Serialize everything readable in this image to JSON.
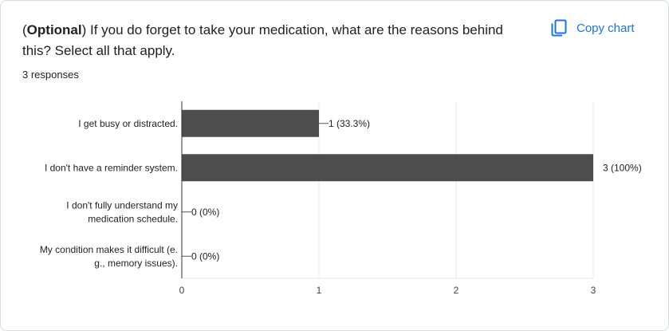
{
  "question": {
    "prefix_bold": "Optional",
    "text": ") If you do forget to take your medication, what are the reasons behind this? Select all that apply."
  },
  "responses_label": "3 responses",
  "copy_button": {
    "label": "Copy chart",
    "icon": "copy-icon",
    "color": "#1a73e8"
  },
  "chart_data": {
    "type": "bar",
    "orientation": "horizontal",
    "categories": [
      [
        "I get busy or distracted."
      ],
      [
        "I don't have a reminder system."
      ],
      [
        "I don't fully understand my",
        "medication schedule."
      ],
      [
        "My condition makes it difficult (e.",
        "g., memory issues)."
      ]
    ],
    "values": [
      1,
      3,
      0,
      0
    ],
    "data_labels": [
      "1 (33.3%)",
      "3 (100%)",
      "0 (0%)",
      "0 (0%)"
    ],
    "xlim": [
      0,
      3
    ],
    "x_ticks": [
      0,
      1,
      2,
      3
    ],
    "grid": true,
    "bar_color": "#4d4d4d"
  }
}
